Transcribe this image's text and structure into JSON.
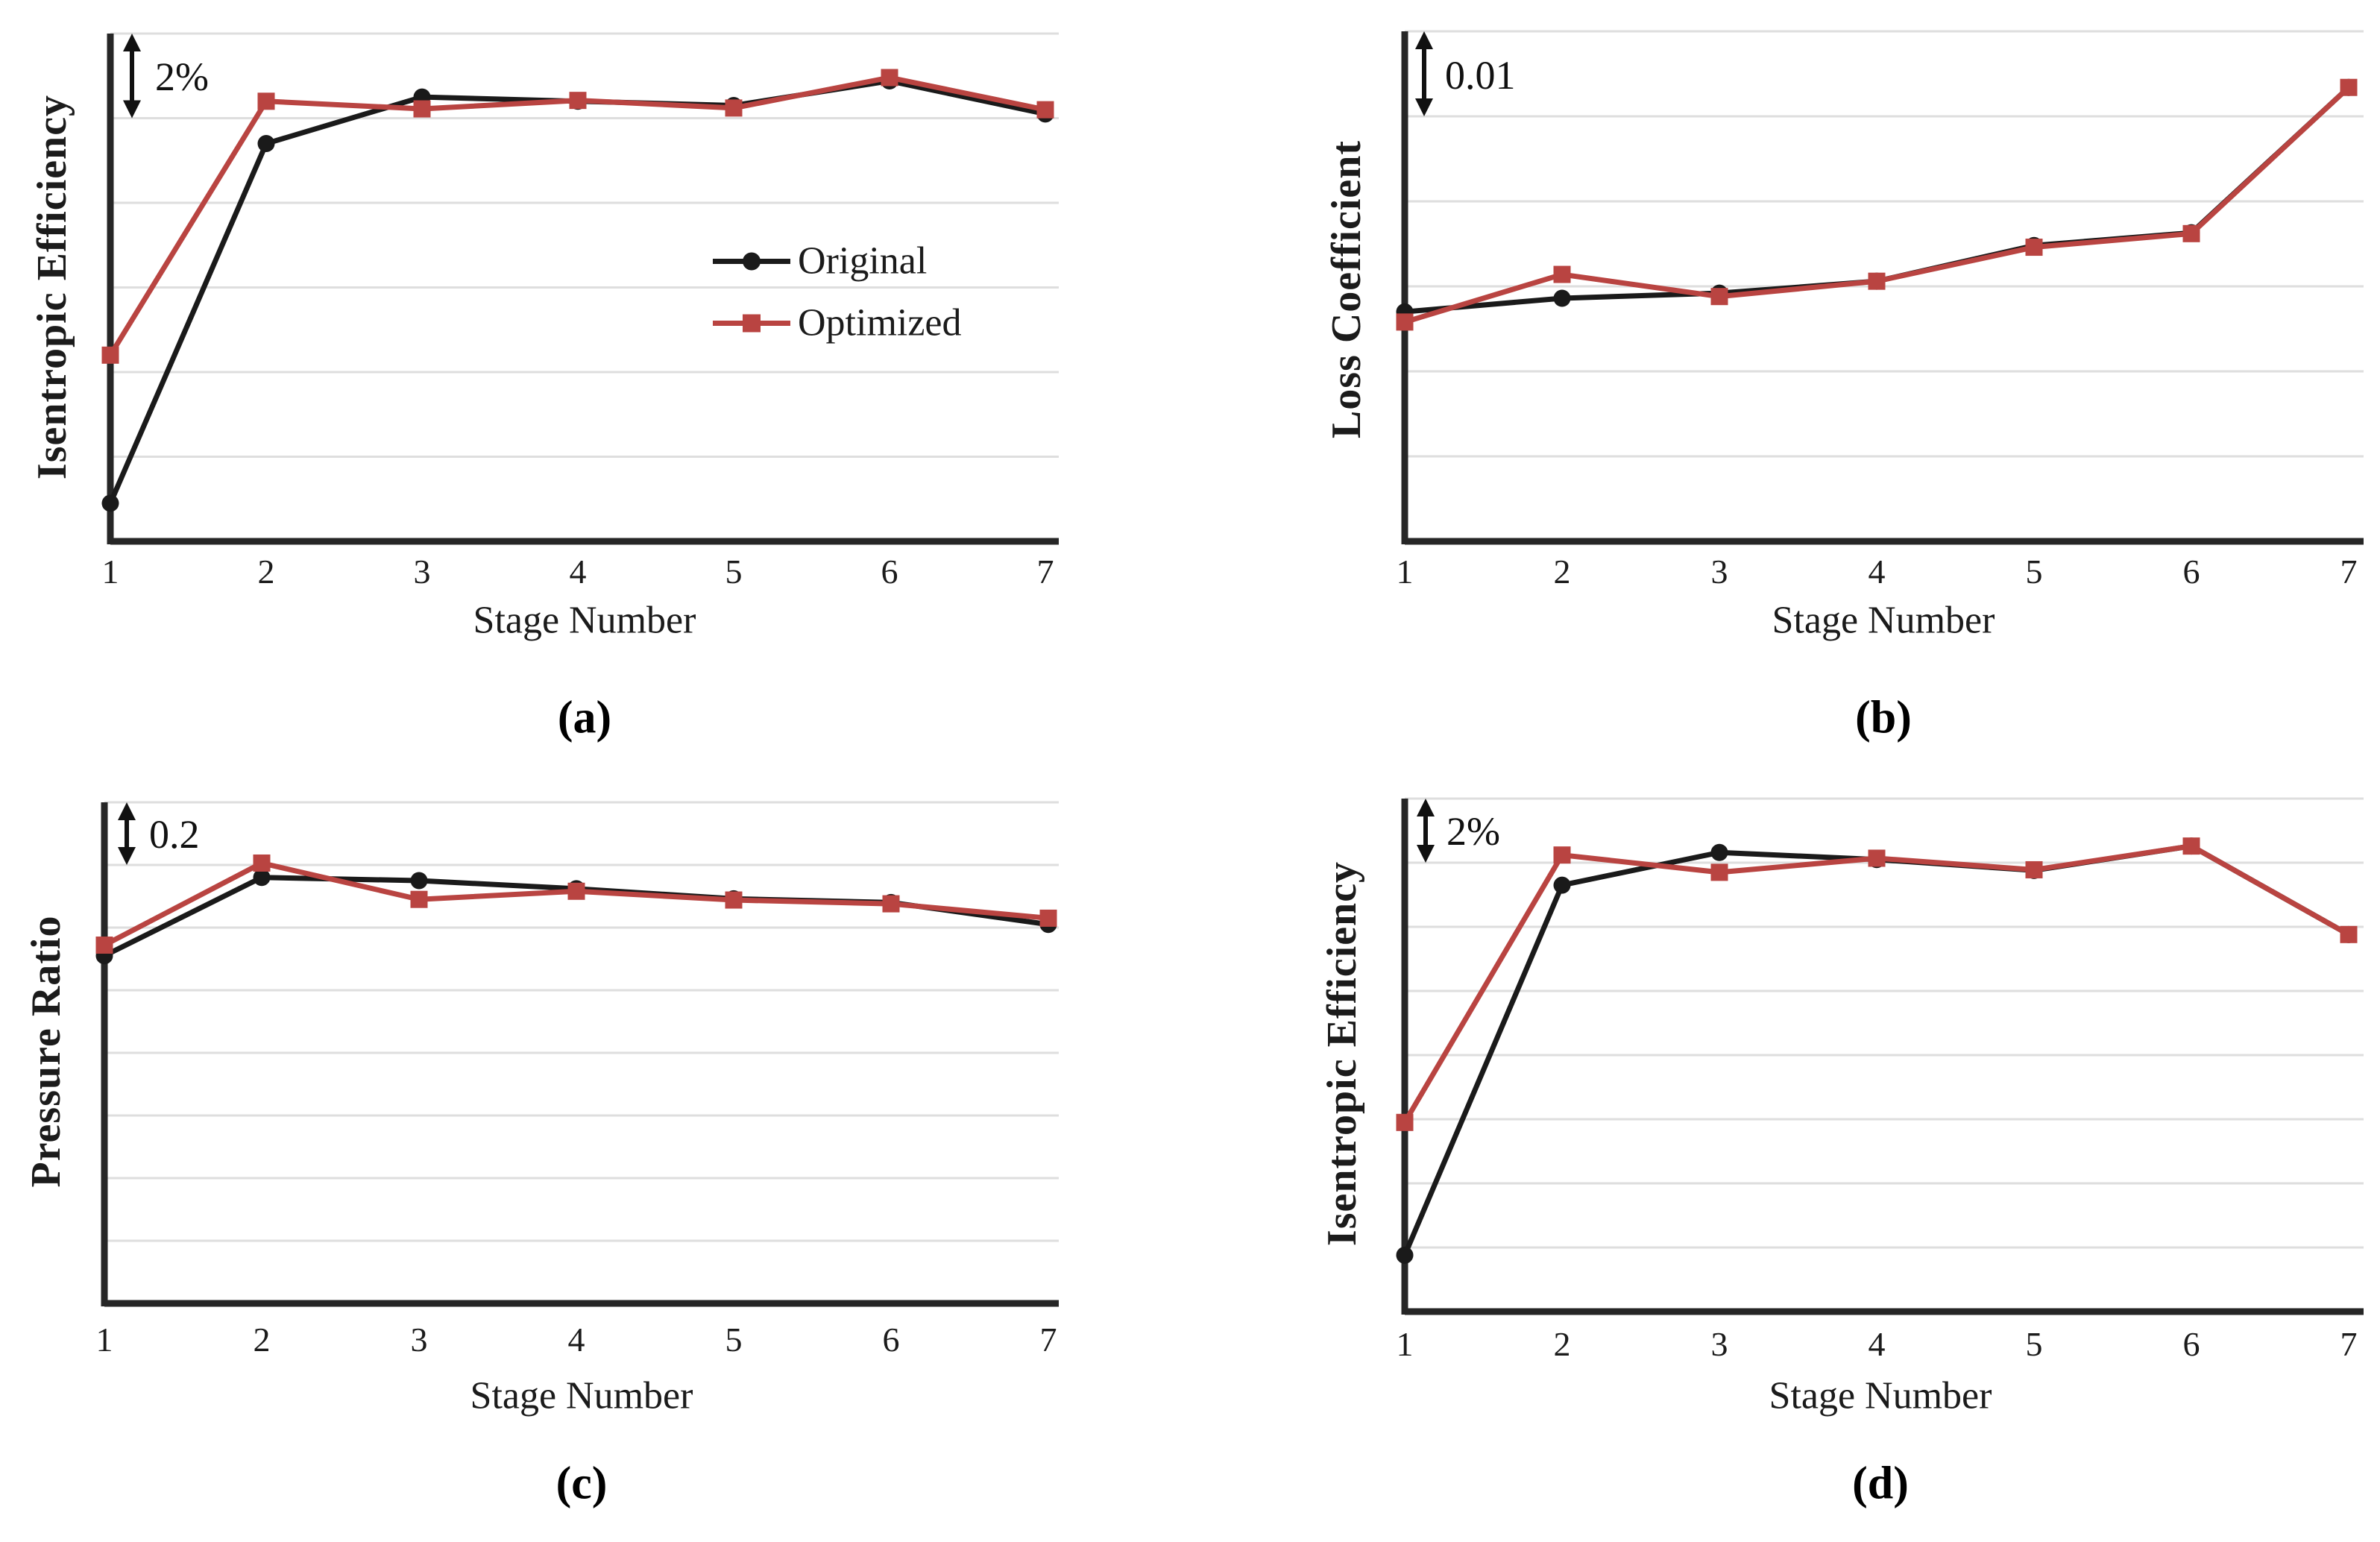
{
  "figure": {
    "background": "#ffffff",
    "colors": {
      "original": "#1a1a1a",
      "optimized": "#b94441",
      "gridline": "#dedede",
      "axis": "#262626",
      "text": "#1b1b1b"
    }
  },
  "legend": {
    "position": "inside panel (a), upper right area",
    "items": [
      "Original",
      "Optimized"
    ]
  },
  "chart_data": [
    {
      "panel": "a",
      "type": "line",
      "caption": "(a)",
      "xlabel": "Stage Number",
      "ylabel": "Isentropic Efficiency",
      "categories": [
        "1",
        "2",
        "3",
        "4",
        "5",
        "6",
        "7"
      ],
      "y_axis_note": "no numeric tick labels; vertical scale bar arrow indicates one gridline gap = 2%; values below are in gridline units above the x-axis baseline",
      "scale_bar": {
        "label": "2%",
        "spans": "one gridline gap"
      },
      "gridlines": 6,
      "grid_on": true,
      "legend_position": "inside upper right",
      "series": [
        {
          "name": "Original",
          "marker": "circle",
          "color": "#1a1a1a",
          "values": [
            0.45,
            4.7,
            5.25,
            5.2,
            5.15,
            5.44,
            5.05
          ]
        },
        {
          "name": "Optimized",
          "marker": "square",
          "color": "#b94441",
          "values": [
            2.2,
            5.2,
            5.11,
            5.21,
            5.12,
            5.48,
            5.1
          ]
        }
      ]
    },
    {
      "panel": "b",
      "type": "line",
      "caption": "(b)",
      "xlabel": "Stage Number",
      "ylabel": "Loss Coefficient",
      "categories": [
        "1",
        "2",
        "3",
        "4",
        "5",
        "6",
        "7"
      ],
      "y_axis_note": "no numeric tick labels; vertical scale bar arrow indicates one gridline gap = 0.01; values below are in gridline units above the x-axis baseline",
      "scale_bar": {
        "label": "0.01",
        "spans": "one gridline gap"
      },
      "gridlines": 6,
      "grid_on": true,
      "legend_position": "none",
      "series": [
        {
          "name": "Original",
          "marker": "circle",
          "color": "#1a1a1a",
          "values": [
            2.7,
            2.86,
            2.92,
            3.06,
            3.48,
            3.63,
            5.34
          ]
        },
        {
          "name": "Optimized",
          "marker": "square",
          "color": "#b94441",
          "values": [
            2.58,
            3.14,
            2.88,
            3.06,
            3.46,
            3.62,
            5.34
          ]
        }
      ]
    },
    {
      "panel": "c",
      "type": "line",
      "caption": "(c)",
      "xlabel": "Stage Number",
      "ylabel": "Pressure Ratio",
      "categories": [
        "1",
        "2",
        "3",
        "4",
        "5",
        "6",
        "7"
      ],
      "y_axis_note": "no numeric tick labels; vertical scale bar arrow indicates one gridline gap = 0.2; values below are in gridline units above the x-axis baseline",
      "scale_bar": {
        "label": "0.2",
        "spans": "one gridline gap"
      },
      "gridlines": 8,
      "grid_on": true,
      "legend_position": "none",
      "series": [
        {
          "name": "Original",
          "marker": "circle",
          "color": "#1a1a1a",
          "values": [
            5.55,
            6.8,
            6.75,
            6.62,
            6.46,
            6.4,
            6.05
          ]
        },
        {
          "name": "Optimized",
          "marker": "square",
          "color": "#b94441",
          "values": [
            5.72,
            7.03,
            6.45,
            6.58,
            6.44,
            6.38,
            6.15
          ]
        }
      ]
    },
    {
      "panel": "d",
      "type": "line",
      "caption": "(d)",
      "xlabel": "Stage Number",
      "ylabel": "Isentropic Efficiency",
      "categories": [
        "1",
        "2",
        "3",
        "4",
        "5",
        "6",
        "7"
      ],
      "y_axis_note": "no numeric tick labels; vertical scale bar arrow indicates one gridline gap = 2%; values below are in gridline units above the x-axis baseline",
      "scale_bar": {
        "label": "2%",
        "spans": "one gridline gap"
      },
      "gridlines": 8,
      "grid_on": true,
      "legend_position": "none",
      "series": [
        {
          "name": "Original",
          "marker": "circle",
          "color": "#1a1a1a",
          "values": [
            0.88,
            6.65,
            7.16,
            7.05,
            6.88,
            7.26,
            5.88
          ]
        },
        {
          "name": "Optimized",
          "marker": "square",
          "color": "#b94441",
          "values": [
            2.95,
            7.12,
            6.85,
            7.07,
            6.89,
            7.26,
            5.88
          ]
        }
      ]
    }
  ]
}
